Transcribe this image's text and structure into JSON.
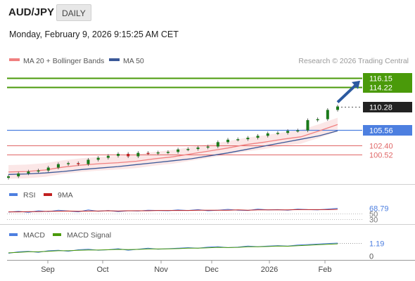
{
  "header": {
    "symbol": "AUD/JPY",
    "timeframe": "DAILY",
    "timestamp": "Monday, February 9, 2026 9:15:25 AM CET"
  },
  "legend": {
    "ma20_label": "MA 20 + Bollinger Bands",
    "ma50_label": "MA 50",
    "credit": "Research © 2026 Trading Central"
  },
  "colors": {
    "up": "#1a7a1a",
    "down": "#c11f1f",
    "ma20": "#f08080",
    "ma50": "#3b5998",
    "target": "#4a9a0a",
    "support": "#4d7fe0",
    "resistance_red": "#e06666",
    "arrow": "#2c5aa0"
  },
  "chart_data": [
    {
      "type": "candlestick",
      "title": "AUD/JPY",
      "x_labels": [
        "Sep",
        "Oct",
        "Nov",
        "Dec",
        "2026",
        "Feb"
      ],
      "levels": [
        {
          "value": 116.15,
          "label": "116.15",
          "kind": "target"
        },
        {
          "value": 114.22,
          "label": "114.22",
          "kind": "target"
        },
        {
          "value": 110.28,
          "label": "110.28",
          "kind": "last"
        },
        {
          "value": 105.56,
          "label": "105.56",
          "kind": "support"
        },
        {
          "value": 102.4,
          "label": "102.40",
          "kind": "red"
        },
        {
          "value": 100.52,
          "label": "100.52",
          "kind": "red"
        }
      ],
      "series": [
        {
          "name": "MA 20 + Bollinger Bands",
          "values": [
            96.9,
            97.0,
            97.3,
            97.9,
            98.3,
            98.6,
            98.8,
            99.1,
            99.6,
            100.0,
            100.6,
            101.2,
            101.8,
            102.5,
            103.0,
            103.6,
            104.1,
            105.3,
            106.6
          ]
        },
        {
          "name": "MA 50",
          "values": [
            96.4,
            96.5,
            96.7,
            97.0,
            97.4,
            97.7,
            98.0,
            98.4,
            98.8,
            99.2,
            99.6,
            100.2,
            100.8,
            101.5,
            102.2,
            102.9,
            103.6,
            104.3,
            105.3
          ]
        }
      ],
      "candle_close": [
        96.0,
        96.6,
        97.0,
        97.2,
        97.8,
        98.5,
        98.7,
        98.5,
        99.4,
        99.8,
        100.2,
        100.6,
        100.1,
        100.8,
        100.7,
        100.9,
        101.0,
        101.5,
        101.6,
        101.9,
        102.1,
        103.0,
        103.5,
        103.6,
        103.9,
        104.3,
        104.8,
        104.9,
        105.3,
        105.4,
        107.5,
        107.7,
        109.6,
        110.3
      ],
      "ylim": [
        95,
        118
      ]
    },
    {
      "type": "line",
      "title": "RSI",
      "series": [
        {
          "name": "RSI",
          "values": [
            55,
            58,
            54,
            60,
            57,
            62,
            59,
            56,
            63,
            58,
            61,
            57,
            60,
            59,
            62,
            61,
            60,
            63,
            61,
            64,
            60,
            62,
            65,
            62,
            61,
            66,
            63,
            64,
            62,
            66,
            64,
            63,
            66,
            68.79
          ]
        },
        {
          "name": "9MA",
          "values": [
            56,
            56,
            57,
            57,
            58,
            58,
            59,
            58,
            59,
            59,
            60,
            59,
            60,
            60,
            60,
            61,
            61,
            61,
            61,
            62,
            62,
            62,
            62,
            63,
            62,
            63,
            63,
            63,
            63,
            64,
            64,
            64,
            64,
            65
          ]
        }
      ],
      "levels": [
        {
          "value": 68.79,
          "label": "68.79"
        },
        {
          "value": 50,
          "label": "50"
        },
        {
          "value": 30,
          "label": "30"
        }
      ],
      "ylim": [
        20,
        95
      ]
    },
    {
      "type": "line",
      "title": "MACD",
      "series": [
        {
          "name": "MACD",
          "values": [
            0.2,
            0.35,
            0.4,
            0.3,
            0.45,
            0.5,
            0.4,
            0.55,
            0.6,
            0.5,
            0.55,
            0.65,
            0.5,
            0.6,
            0.7,
            0.6,
            0.65,
            0.7,
            0.75,
            0.7,
            0.8,
            0.85,
            0.75,
            0.8,
            0.9,
            0.85,
            0.9,
            0.95,
            0.9,
            1.0,
            1.05,
            1.1,
            1.15,
            1.19
          ]
        },
        {
          "name": "MACD Signal",
          "values": [
            0.25,
            0.3,
            0.35,
            0.35,
            0.4,
            0.45,
            0.45,
            0.5,
            0.52,
            0.52,
            0.55,
            0.58,
            0.56,
            0.58,
            0.62,
            0.62,
            0.63,
            0.66,
            0.7,
            0.7,
            0.74,
            0.78,
            0.76,
            0.78,
            0.83,
            0.83,
            0.86,
            0.9,
            0.89,
            0.94,
            0.98,
            1.03,
            1.08,
            1.12
          ]
        }
      ],
      "levels": [
        {
          "value": 1.19,
          "label": "1.19"
        },
        {
          "value": 0,
          "label": "0"
        }
      ],
      "ylim": [
        -0.3,
        1.6
      ]
    }
  ]
}
